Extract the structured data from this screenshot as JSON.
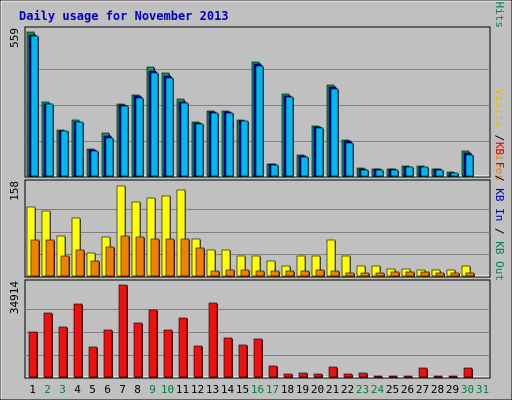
{
  "chart_data": {
    "type": "bar",
    "title": "Daily usage for November 2013",
    "x": [
      "1",
      "2",
      "3",
      "4",
      "5",
      "6",
      "7",
      "8",
      "9",
      "10",
      "11",
      "12",
      "13",
      "14",
      "15",
      "16",
      "17",
      "18",
      "19",
      "20",
      "21",
      "22",
      "23",
      "24",
      "25",
      "26",
      "27",
      "28",
      "29",
      "30",
      "31"
    ],
    "weekend_days": [
      "2",
      "3",
      "9",
      "10",
      "16",
      "17",
      "23",
      "24",
      "30",
      "31"
    ],
    "panels": [
      {
        "name": "top",
        "max_label": "559",
        "ylim": [
          0,
          559
        ],
        "side_labels": [
          {
            "text": "Pages",
            "color": "#00b0e0"
          },
          {
            "text": " / ",
            "color": "#000000"
          },
          {
            "text": "Files",
            "color": "#0000c0"
          },
          {
            "text": " / ",
            "color": "#000000"
          },
          {
            "text": "Hits",
            "color": "#008060"
          }
        ],
        "series": [
          {
            "name": "Hits",
            "color": "#00a060",
            "values": [
              559,
              287,
              180,
              218,
              103,
              165,
              281,
              315,
              424,
              399,
              297,
              211,
              253,
              253,
              219,
              442,
              48,
              318,
              81,
              194,
              352,
              141,
              30,
              29,
              29,
              38,
              38,
              28,
              14,
              98,
              0
            ]
          },
          {
            "name": "Files",
            "color": "#0000c0",
            "values": [
              548,
              281,
              175,
              210,
              99,
              156,
              274,
              310,
              407,
              387,
              289,
              206,
              249,
              249,
              215,
              434,
              47,
              312,
              77,
              190,
              345,
              136,
              28,
              27,
              28,
              36,
              36,
              27,
              13,
              88,
              0
            ]
          },
          {
            "name": "Pages",
            "color": "#00b8f0",
            "values": [
              545,
              279,
              173,
              208,
              96,
              148,
              270,
              303,
              398,
              381,
              283,
              202,
              243,
              244,
              212,
              427,
              44,
              305,
              72,
              186,
              338,
              130,
              25,
              24,
              25,
              33,
              34,
              24,
              11,
              82,
              0
            ]
          }
        ]
      },
      {
        "name": "middle",
        "max_label": "158",
        "ylim": [
          0,
          158
        ],
        "side_labels": [
          {
            "text": "Visits",
            "color": "#e0c000"
          },
          {
            "text": " / ",
            "color": "#000000"
          },
          {
            "text": "Sites",
            "color": "#f08000"
          }
        ],
        "series": [
          {
            "name": "Visits",
            "color": "#ffff00",
            "values": [
              120,
              112,
              70,
              101,
              40,
              67,
              157,
              128,
              136,
              139,
              150,
              65,
              46,
              46,
              34,
              34,
              26,
              17,
              34,
              34,
              62,
              35,
              17,
              17,
              13,
              13,
              11,
              10,
              10,
              17,
              0
            ]
          },
          {
            "name": "Sites",
            "color": "#f08000",
            "values": [
              62,
              63,
              35,
              46,
              26,
              51,
              69,
              67,
              64,
              64,
              64,
              49,
              9,
              10,
              11,
              9,
              9,
              9,
              9,
              11,
              9,
              6,
              6,
              6,
              7,
              7,
              7,
              6,
              6,
              6,
              0
            ]
          }
        ]
      },
      {
        "name": "bottom",
        "max_label": "34914",
        "ylim": [
          0,
          34914
        ],
        "side_labels": [
          {
            "text": "KB F",
            "color": "#e00000"
          },
          {
            "text": " / ",
            "color": "#000000"
          },
          {
            "text": "KB In",
            "color": "#0000c0"
          },
          {
            "text": " / ",
            "color": "#000000"
          },
          {
            "text": "KB Out",
            "color": "#008060"
          }
        ],
        "series": [
          {
            "name": "KB F",
            "color": "#f01010",
            "values": [
              16900,
              24200,
              18800,
              27600,
              11400,
              17800,
              34914,
              20600,
              25600,
              18000,
              22300,
              11800,
              28200,
              14900,
              12000,
              14600,
              4200,
              1200,
              1400,
              1300,
              3800,
              1300,
              1400,
              500,
              500,
              500,
              3400,
              500,
              500,
              3400,
              0
            ]
          }
        ]
      }
    ]
  }
}
